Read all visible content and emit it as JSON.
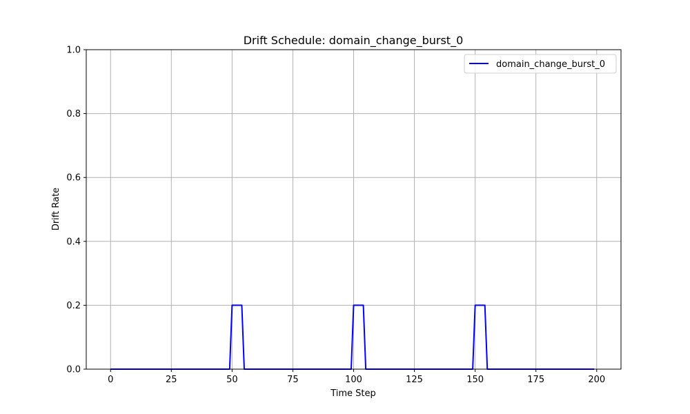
{
  "chart_data": {
    "type": "line",
    "title": "Drift Schedule: domain_change_burst_0",
    "xlabel": "Time Step",
    "ylabel": "Drift Rate",
    "xlim": [
      -10,
      210
    ],
    "ylim": [
      0,
      1.0
    ],
    "xticks": [
      0,
      25,
      50,
      75,
      100,
      125,
      150,
      175,
      200
    ],
    "xtick_labels": [
      "0",
      "25",
      "50",
      "75",
      "100",
      "125",
      "150",
      "175",
      "200"
    ],
    "yticks": [
      0.0,
      0.2,
      0.4,
      0.6,
      0.8,
      1.0
    ],
    "ytick_labels": [
      "0.0",
      "0.2",
      "0.4",
      "0.6",
      "0.8",
      "1.0"
    ],
    "grid": true,
    "legend_position": "top-right",
    "series": [
      {
        "name": "domain_change_burst_0",
        "color": "#0000ff",
        "x": [
          0,
          49,
          50,
          54,
          55,
          99,
          100,
          104,
          105,
          149,
          150,
          154,
          155,
          199
        ],
        "y": [
          0,
          0,
          0.2,
          0.2,
          0,
          0,
          0.2,
          0.2,
          0,
          0,
          0.2,
          0.2,
          0,
          0
        ]
      }
    ]
  }
}
